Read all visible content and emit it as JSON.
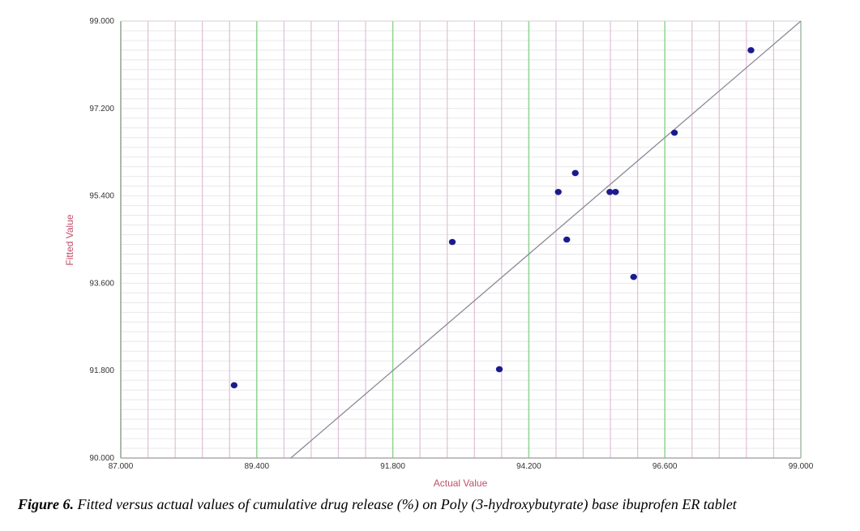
{
  "chart_data": {
    "type": "scatter",
    "title": "",
    "xlabel": "Actual Value",
    "ylabel": "Fitted Value",
    "xlim": [
      87.0,
      99.0
    ],
    "ylim": [
      90.0,
      99.0
    ],
    "x_ticks": [
      "87.000",
      "89.400",
      "91.800",
      "94.200",
      "96.600",
      "99.000"
    ],
    "y_ticks": [
      "90.000",
      "91.800",
      "93.600",
      "95.400",
      "97.200",
      "99.000"
    ],
    "x_tick_values": [
      87.0,
      89.4,
      91.8,
      94.2,
      96.6,
      99.0
    ],
    "y_tick_values": [
      90.0,
      91.8,
      93.6,
      95.4,
      97.2,
      99.0
    ],
    "grid": true,
    "reference_line": "y = x",
    "points": [
      {
        "x": 89.0,
        "y": 91.5
      },
      {
        "x": 92.85,
        "y": 94.45
      },
      {
        "x": 93.68,
        "y": 91.83
      },
      {
        "x": 94.72,
        "y": 95.48
      },
      {
        "x": 94.87,
        "y": 94.5
      },
      {
        "x": 95.02,
        "y": 95.87
      },
      {
        "x": 95.63,
        "y": 95.48
      },
      {
        "x": 95.73,
        "y": 95.48
      },
      {
        "x": 96.05,
        "y": 93.73
      },
      {
        "x": 96.77,
        "y": 96.7
      },
      {
        "x": 98.12,
        "y": 98.4
      }
    ],
    "colors": {
      "points": "#1b1b8f",
      "reference_line": "#8a8a9a",
      "major_grid": "#8fd48f",
      "minor_grid": "#e0bfd8",
      "horizontal_grid": "#e8e8e8",
      "axis_title": "#c0506a"
    }
  },
  "caption": {
    "label": "Figure 6.",
    "text": " Fitted versus actual values of cumulative drug release (%) on Poly (3-hydroxybutyrate) base ibuprofen ER tablet"
  }
}
